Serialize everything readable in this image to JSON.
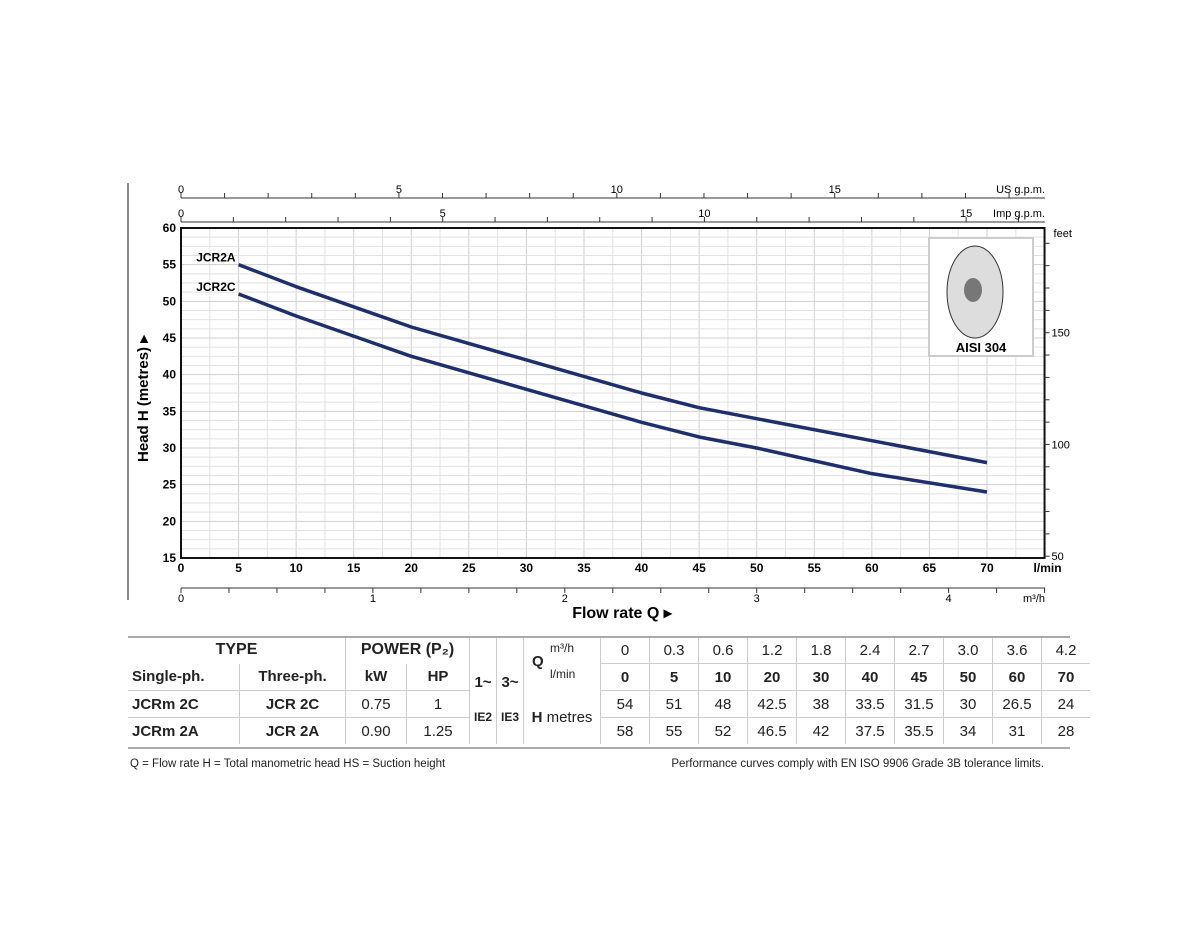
{
  "chart_data": {
    "type": "line",
    "xlabel": "Flow rate Q",
    "ylabel": "Head H (metres)",
    "xlim": [
      0,
      75
    ],
    "ylim": [
      15,
      60
    ],
    "x_unit": "l/min",
    "x_ticks": [
      0,
      5,
      10,
      15,
      20,
      25,
      30,
      35,
      40,
      45,
      50,
      55,
      60,
      65,
      70
    ],
    "y_ticks": [
      15,
      20,
      25,
      30,
      35,
      40,
      45,
      50,
      55,
      60
    ],
    "secondary_axes": {
      "us_gpm": {
        "label": "US g.p.m.",
        "ticks": [
          0,
          5,
          10,
          15
        ]
      },
      "imp_gpm": {
        "label": "Imp g.p.m.",
        "ticks": [
          0,
          5,
          10,
          15
        ]
      },
      "feet": {
        "label": "feet",
        "ticks": [
          50,
          100,
          150
        ]
      },
      "m3h": {
        "label": "m³/h",
        "ticks": [
          0,
          1,
          2,
          3,
          4
        ]
      }
    },
    "x": [
      5,
      10,
      20,
      30,
      40,
      45,
      50,
      60,
      70
    ],
    "series": [
      {
        "name": "JCR2A",
        "values": [
          55,
          52,
          46.5,
          42,
          37.5,
          35.5,
          34,
          31,
          28
        ]
      },
      {
        "name": "JCR2C",
        "values": [
          51,
          48,
          42.5,
          38,
          33.5,
          31.5,
          30,
          26.5,
          24
        ]
      }
    ],
    "inset_label": "AISI 304",
    "grid": true
  },
  "table": {
    "type_header": "TYPE",
    "power_header": "POWER (P₂)",
    "single": "Single-ph.",
    "three": "Three-ph.",
    "kw": "kW",
    "hp": "HP",
    "ph1": "1~",
    "ph3": "3~",
    "q": "Q",
    "m3h": "m³/h",
    "lmin": "l/min",
    "h": "H",
    "metres": "metres",
    "ie2": "IE2",
    "ie3": "IE3",
    "q_m3h": [
      "0",
      "0.3",
      "0.6",
      "1.2",
      "1.8",
      "2.4",
      "2.7",
      "3.0",
      "3.6",
      "4.2"
    ],
    "q_lmin": [
      "0",
      "5",
      "10",
      "20",
      "30",
      "40",
      "45",
      "50",
      "60",
      "70"
    ],
    "rows": [
      {
        "single": "JCRm 2C",
        "three": "JCR 2C",
        "kw": "0.75",
        "hp": "1",
        "h": [
          "54",
          "51",
          "48",
          "42.5",
          "38",
          "33.5",
          "31.5",
          "30",
          "26.5",
          "24"
        ]
      },
      {
        "single": "JCRm 2A",
        "three": "JCR 2A",
        "kw": "0.90",
        "hp": "1.25",
        "h": [
          "58",
          "55",
          "52",
          "46.5",
          "42",
          "37.5",
          "35.5",
          "34",
          "31",
          "28"
        ]
      }
    ]
  },
  "footer": {
    "left": "Q = Flow rate   H = Total manometric head   HS = Suction height",
    "right": "Performance curves comply with EN ISO 9906 Grade 3B tolerance limits."
  },
  "colors": {
    "curve": "#1f2f6b"
  }
}
